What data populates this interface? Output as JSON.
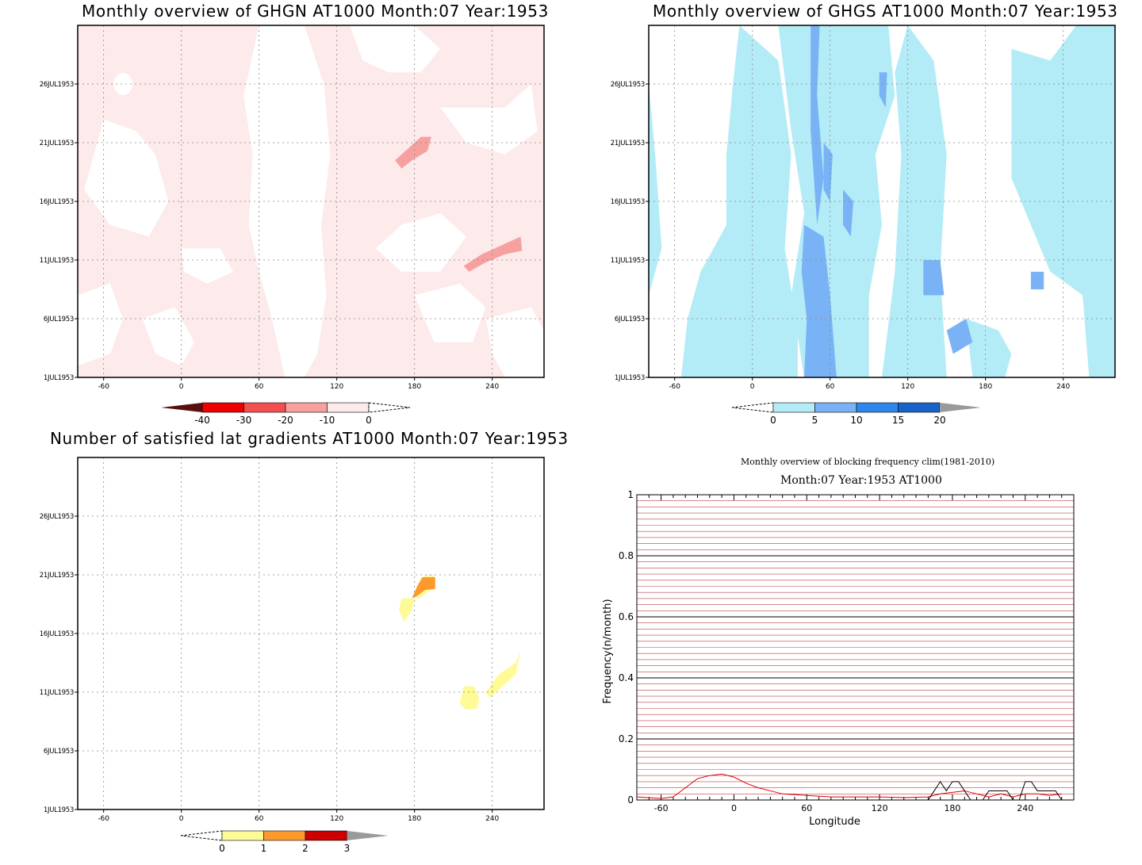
{
  "panels": {
    "ghgn": {
      "title": "Monthly overview of GHGN AT1000 Month:07 Year:1953",
      "colorbar": {
        "labels": [
          "-40",
          "-30",
          "-20",
          "-10",
          "0"
        ],
        "colors": [
          "#5a0f0f",
          "#ee0000",
          "#f35050",
          "#f7a0a0",
          "#fdeaea"
        ]
      }
    },
    "ghgs": {
      "title": "Monthly overview of GHGS AT1000 Month:07 Year:1953",
      "colorbar": {
        "labels": [
          "0",
          "5",
          "10",
          "15",
          "20"
        ],
        "colors": [
          "#b3ecf7",
          "#7ab3f5",
          "#2f86ea",
          "#1863c9",
          "#9a9a9a"
        ]
      }
    },
    "nlat": {
      "title": "Number of satisfied lat gradients AT1000 Month:07 Year:1953",
      "colorbar": {
        "labels": [
          "0",
          "1",
          "2",
          "3"
        ],
        "colors": [
          "#fefa96",
          "#fd9a2e",
          "#cc0000",
          "#9a9a9a"
        ]
      }
    },
    "freq": {
      "title1": "Monthly overview of blocking frequency clim(1981-2010)",
      "title2": "Month:07 Year:1953  AT1000"
    }
  },
  "chart_data": [
    {
      "type": "heatmap",
      "title": "Monthly overview of GHGN AT1000 Month:07 Year:1953",
      "x_ticks": [
        "-60",
        "0",
        "60",
        "120",
        "180",
        "240"
      ],
      "y_ticks": [
        "1JUL1953",
        "6JUL1953",
        "11JUL1953",
        "16JUL1953",
        "21JUL1953",
        "26JUL1953"
      ],
      "xlim": [
        -80,
        280
      ],
      "ylim": [
        1,
        31
      ],
      "levels": [
        -40,
        -30,
        -20,
        -10,
        0
      ],
      "dominant_range": [
        -10,
        0
      ],
      "regions_minus20": [
        {
          "lon": [
            165,
            200
          ],
          "day": [
            19,
            21
          ]
        },
        {
          "lon": [
            218,
            262
          ],
          "day": [
            10,
            13
          ]
        }
      ]
    },
    {
      "type": "heatmap",
      "title": "Monthly overview of GHGS AT1000 Month:07 Year:1953",
      "x_ticks": [
        "-60",
        "0",
        "60",
        "120",
        "180",
        "240"
      ],
      "y_ticks": [
        "1JUL1953",
        "6JUL1953",
        "11JUL1953",
        "16JUL1953",
        "21JUL1953",
        "26JUL1953"
      ],
      "xlim": [
        -80,
        280
      ],
      "ylim": [
        1,
        31
      ],
      "levels": [
        0,
        5,
        10,
        15,
        20
      ],
      "dominant_range": [
        0,
        5
      ],
      "regions_5_10": [
        {
          "lon": [
            38,
            72
          ],
          "day": [
            1,
            31
          ]
        }
      ]
    },
    {
      "type": "heatmap",
      "title": "Number of satisfied lat gradients AT1000 Month:07 Year:1953",
      "x_ticks": [
        "-60",
        "0",
        "60",
        "120",
        "180",
        "240"
      ],
      "y_ticks": [
        "1JUL1953",
        "6JUL1953",
        "11JUL1953",
        "16JUL1953",
        "21JUL1953",
        "26JUL1953"
      ],
      "xlim": [
        -80,
        280
      ],
      "ylim": [
        1,
        31
      ],
      "levels": [
        0,
        1,
        2,
        3
      ],
      "regions_0_1": [
        {
          "lon": [
            165,
            200
          ],
          "day": [
            18,
            21
          ]
        },
        {
          "lon": [
            215,
            232
          ],
          "day": [
            10,
            12
          ]
        },
        {
          "lon": [
            235,
            262
          ],
          "day": [
            12,
            14.5
          ]
        }
      ],
      "regions_1_2": [
        {
          "lon": [
            178,
            198
          ],
          "day": [
            19.5,
            21
          ]
        }
      ]
    },
    {
      "type": "line",
      "title": "Monthly overview of blocking frequency clim(1981-2010)",
      "subtitle": "Month:07 Year:1953  AT1000",
      "xlabel": "Longitude",
      "ylabel": "Frequency(n/month)",
      "xlim": [
        -80,
        280
      ],
      "ylim": [
        0,
        1
      ],
      "x_ticks": [
        "-60",
        "0",
        "60",
        "120",
        "180",
        "240"
      ],
      "y_ticks": [
        "0",
        "0.2",
        "0.4",
        "0.6",
        "0.8",
        "1"
      ],
      "series": [
        {
          "color": "#dd0000",
          "x": [
            -80,
            -60,
            -50,
            -40,
            -30,
            -20,
            -10,
            0,
            10,
            20,
            30,
            40,
            60,
            80,
            100,
            120,
            140,
            160,
            170,
            180,
            190,
            200,
            210,
            220,
            230,
            240,
            250,
            260,
            270
          ],
          "y": [
            0.01,
            0.005,
            0.01,
            0.04,
            0.07,
            0.08,
            0.085,
            0.075,
            0.055,
            0.04,
            0.03,
            0.02,
            0.015,
            0.01,
            0.01,
            0.01,
            0.008,
            0.01,
            0.02,
            0.025,
            0.03,
            0.02,
            0.01,
            0.02,
            0.01,
            0.02,
            0.02,
            0.015,
            0.02
          ]
        },
        {
          "color": "#000000",
          "x": [
            -80,
            160,
            165,
            170,
            175,
            180,
            185,
            190,
            195,
            200,
            205,
            210,
            215,
            220,
            225,
            230,
            235,
            240,
            245,
            250,
            255,
            260,
            265,
            270
          ],
          "y": [
            0,
            0,
            0.03,
            0.06,
            0.03,
            0.06,
            0.06,
            0.03,
            0,
            0,
            0,
            0.03,
            0.03,
            0.03,
            0.03,
            0,
            0,
            0.06,
            0.06,
            0.03,
            0.03,
            0.03,
            0.03,
            0
          ]
        }
      ]
    }
  ]
}
